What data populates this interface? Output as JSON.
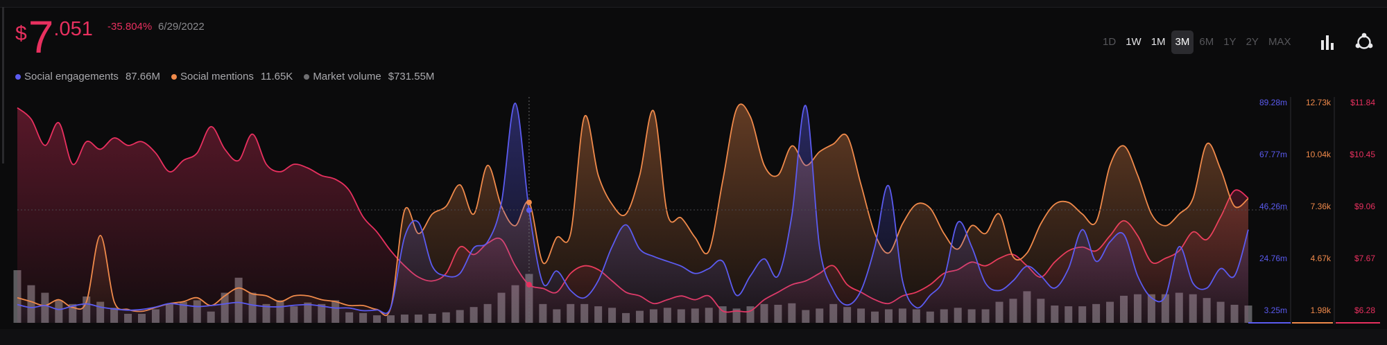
{
  "price": {
    "currency": "$",
    "integer": "7",
    "decimal": ".051",
    "change": "-35.804%",
    "date": "6/29/2022"
  },
  "legend": [
    {
      "label": "Social engagements",
      "value": "87.66M",
      "color": "#5b5bf0"
    },
    {
      "label": "Social mentions",
      "value": "11.65K",
      "color": "#f08a4b"
    },
    {
      "label": "Market volume",
      "value": "$731.55M",
      "color": "#6f6f72"
    }
  ],
  "ranges": [
    {
      "label": "1D",
      "state": "disabled"
    },
    {
      "label": "1W",
      "state": "enabled"
    },
    {
      "label": "1M",
      "state": "enabled"
    },
    {
      "label": "3M",
      "state": "active"
    },
    {
      "label": "6M",
      "state": "disabled"
    },
    {
      "label": "1Y",
      "state": "disabled"
    },
    {
      "label": "2Y",
      "state": "disabled"
    },
    {
      "label": "MAX",
      "state": "disabled"
    }
  ],
  "tools": [
    "bar-chart-icon",
    "share-icon"
  ],
  "colors": {
    "engagement": "#5b5bf0",
    "mentions": "#f08a4b",
    "price": "#e8305f",
    "volume": "#6f6f72",
    "background": "#0b0b0c"
  },
  "chart_data": {
    "type": "line",
    "x_points": 90,
    "axes": [
      {
        "name": "Social engagements",
        "color": "#5b5bf0",
        "ticks": [
          "89.28m",
          "67.77m",
          "46.26m",
          "24.76m",
          "3.25m"
        ],
        "min": 3.25,
        "max": 89.28,
        "unit": "m"
      },
      {
        "name": "Social mentions",
        "color": "#f08a4b",
        "ticks": [
          "12.73k",
          "10.04k",
          "7.36k",
          "4.67k",
          "1.98k"
        ],
        "min": 1.98,
        "max": 12.73,
        "unit": "k"
      },
      {
        "name": "Price",
        "color": "#e8305f",
        "ticks": [
          "$11.84",
          "$10.45",
          "$9.06",
          "$7.67",
          "$6.28"
        ],
        "min": 6.28,
        "max": 11.84,
        "unit": "$"
      }
    ],
    "series": [
      {
        "name": "Social engagements",
        "axis": 0,
        "values": [
          6.2,
          5.0,
          5.8,
          4.2,
          5.6,
          6.5,
          5.2,
          4.4,
          3.9,
          4.2,
          5.2,
          6.6,
          6.0,
          5.4,
          5.8,
          6.5,
          7.1,
          6.0,
          5.4,
          5.3,
          5.9,
          6.2,
          5.6,
          4.8,
          4.8,
          3.7,
          4.0,
          5.0,
          34.0,
          40.0,
          22.0,
          18.0,
          19.0,
          29.5,
          32.0,
          48.0,
          89.0,
          45.0,
          15.0,
          20.0,
          12.0,
          9.0,
          16.0,
          30.0,
          39.0,
          29.0,
          26.0,
          24.0,
          22.0,
          19.0,
          21.0,
          24.0,
          10.0,
          18.0,
          25.0,
          18.0,
          43.0,
          88.0,
          30.0,
          12.0,
          6.0,
          12.0,
          30.0,
          55.0,
          16.0,
          5.0,
          10.0,
          17.0,
          40.0,
          30.0,
          15.0,
          12.0,
          16.0,
          22.0,
          18.0,
          13.0,
          21.0,
          37.0,
          24.0,
          32.0,
          35.0,
          18.0,
          9.0,
          9.5,
          30.0,
          15.0,
          13.0,
          21.0,
          18.0,
          37.0
        ]
      },
      {
        "name": "Social mentions",
        "axis": 1,
        "values": [
          2.7,
          2.5,
          2.3,
          2.6,
          2.2,
          2.5,
          5.9,
          2.5,
          2.1,
          2.0,
          2.2,
          2.4,
          2.5,
          2.7,
          2.3,
          2.8,
          3.2,
          2.9,
          2.8,
          2.5,
          2.8,
          2.8,
          2.6,
          2.5,
          2.3,
          2.3,
          2.1,
          2.2,
          7.2,
          6.0,
          7.0,
          7.4,
          8.5,
          7.0,
          9.5,
          7.4,
          6.4,
          7.6,
          4.5,
          5.8,
          6.0,
          12.0,
          9.0,
          7.5,
          7.0,
          9.0,
          12.3,
          7.0,
          6.8,
          5.8,
          5.1,
          8.7,
          12.4,
          12.0,
          9.5,
          9.0,
          10.5,
          9.5,
          10.2,
          10.6,
          11.0,
          8.5,
          6.0,
          5.0,
          6.5,
          7.5,
          7.3,
          6.0,
          5.2,
          6.4,
          6.0,
          7.0,
          4.8,
          5.0,
          6.5,
          7.5,
          7.6,
          7.0,
          6.6,
          9.5,
          10.5,
          9.0,
          7.0,
          6.4,
          7.0,
          7.8,
          10.6,
          9.3,
          7.4,
          7.8
        ]
      },
      {
        "name": "Price",
        "axis": 2,
        "values": [
          11.7,
          11.4,
          10.7,
          11.3,
          10.2,
          10.8,
          10.6,
          10.9,
          10.7,
          10.8,
          10.5,
          10.0,
          10.3,
          10.5,
          11.2,
          10.6,
          10.3,
          11.0,
          10.2,
          10.0,
          10.2,
          10.1,
          9.9,
          9.8,
          9.5,
          8.8,
          8.4,
          7.9,
          7.5,
          7.2,
          7.1,
          7.3,
          8.0,
          7.8,
          8.1,
          8.2,
          7.5,
          7.0,
          6.9,
          6.8,
          7.3,
          7.5,
          7.4,
          7.1,
          6.8,
          6.7,
          6.5,
          6.6,
          6.7,
          6.6,
          6.7,
          6.3,
          6.3,
          6.3,
          6.6,
          6.8,
          7.0,
          7.1,
          7.3,
          7.5,
          7.0,
          6.8,
          6.6,
          6.5,
          6.7,
          6.8,
          7.0,
          7.3,
          7.4,
          7.6,
          7.5,
          7.7,
          7.8,
          7.5,
          7.2,
          7.6,
          7.9,
          8.0,
          7.9,
          8.3,
          8.7,
          8.3,
          7.6,
          7.7,
          7.9,
          8.4,
          8.2,
          8.8,
          9.5,
          9.3
        ]
      }
    ],
    "volume": {
      "name": "Market volume",
      "values": [
        7.0,
        5.0,
        4.0,
        3.0,
        2.5,
        3.5,
        2.8,
        2.0,
        1.2,
        1.2,
        1.8,
        2.5,
        2.8,
        3.0,
        1.5,
        4.0,
        6.0,
        4.0,
        2.5,
        3.0,
        2.2,
        2.7,
        2.5,
        3.0,
        1.4,
        1.3,
        1.0,
        1.0,
        1.1,
        1.1,
        1.2,
        1.4,
        1.7,
        2.1,
        2.5,
        4.0,
        5.0,
        6.5,
        2.5,
        1.8,
        2.5,
        2.5,
        2.2,
        2.0,
        1.3,
        1.6,
        1.8,
        2.0,
        1.8,
        1.9,
        2.0,
        2.2,
        1.9,
        2.2,
        2.5,
        2.4,
        2.6,
        1.7,
        1.9,
        2.5,
        2.1,
        1.9,
        1.5,
        1.8,
        1.9,
        1.8,
        1.5,
        1.8,
        2.0,
        1.8,
        1.8,
        2.8,
        3.2,
        4.2,
        3.2,
        2.3,
        2.2,
        2.2,
        2.5,
        2.8,
        3.6,
        3.8,
        3.8,
        3.8,
        4.0,
        3.8,
        3.3,
        2.8,
        2.4,
        2.3
      ]
    },
    "crosshair_index": 37,
    "grid": false,
    "legend_position": "top-left"
  }
}
